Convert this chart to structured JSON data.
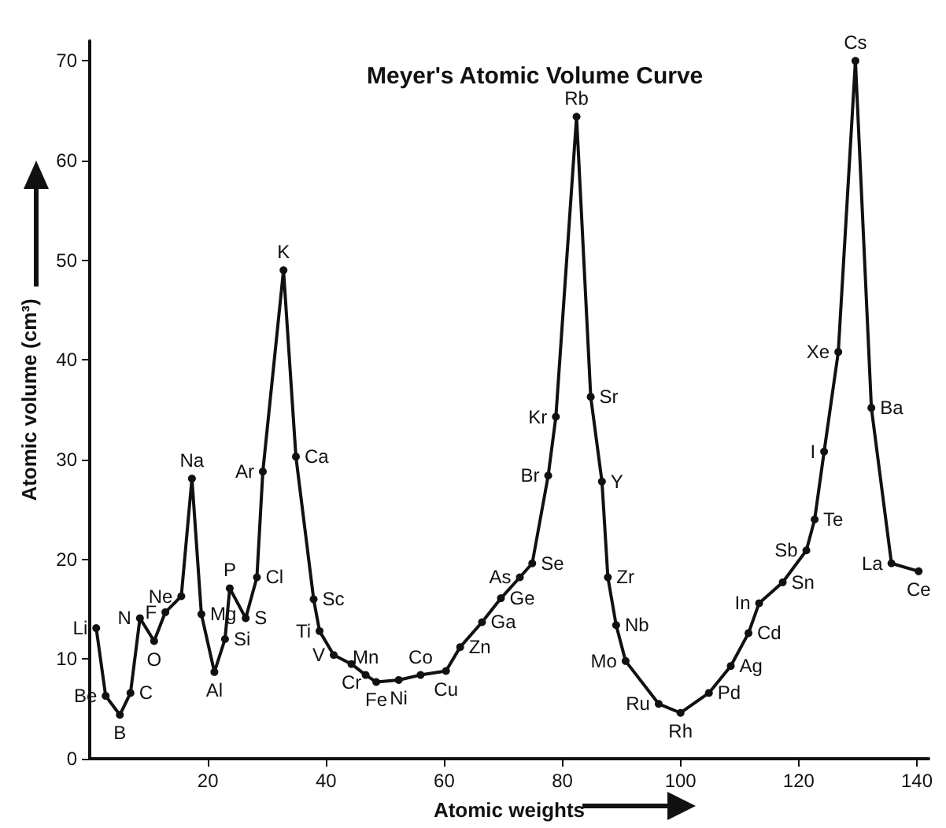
{
  "chart_data": {
    "type": "line",
    "title": "Meyer's Atomic Volume Curve",
    "xlabel": "Atomic weights",
    "ylabel": "Atomic volume (cm³)",
    "x": [
      1.1,
      2.7,
      5.1,
      6.9,
      8.5,
      10.9,
      12.8,
      15.5,
      17.3,
      18.9,
      21.1,
      22.9,
      23.7,
      26.4,
      28.3,
      29.3,
      32.8,
      34.9,
      37.9,
      38.9,
      41.3,
      44.3,
      46.7,
      48.5,
      52.3,
      56,
      60.3,
      62.7,
      66.4,
      69.6,
      72.8,
      74.9,
      77.6,
      78.9,
      82.4,
      84.8,
      86.7,
      87.7,
      89.1,
      90.7,
      96.3,
      100,
      104.8,
      108.5,
      111.5,
      113.3,
      117.3,
      121.3,
      122.7,
      124.3,
      126.7,
      129.6,
      132.3,
      135.7,
      140.3
    ],
    "series": [
      {
        "color": "#111111",
        "values": [
          13.1,
          6.3,
          4.4,
          6.6,
          14.1,
          11.8,
          14.7,
          16.3,
          28.1,
          14.5,
          8.7,
          12,
          17.1,
          14.1,
          18.2,
          28.8,
          49,
          30.3,
          16,
          12.8,
          10.4,
          9.5,
          8.4,
          7.7,
          7.9,
          8.4,
          8.8,
          11.2,
          13.7,
          16.1,
          18.2,
          19.6,
          28.4,
          34.3,
          64.4,
          36.3,
          27.8,
          18.2,
          13.4,
          9.8,
          5.5,
          4.6,
          6.6,
          9.3,
          12.6,
          15.6,
          17.7,
          20.9,
          24,
          30.8,
          40.8,
          70,
          35.2,
          19.6,
          18.8
        ],
        "value_labels": [
          "Li",
          "Be",
          "B",
          "C",
          "N",
          "O",
          "F",
          "Ne",
          "Na",
          "Mg",
          "Al",
          "Si",
          "P",
          "S",
          "Cl",
          "Ar",
          "K",
          "Ca",
          "Sc",
          "Ti",
          "V",
          "Cr",
          "Mn",
          "Fe",
          "Ni",
          "Co",
          "Cu",
          "Zn",
          "Ga",
          "Ge",
          "As",
          "Se",
          "Br",
          "Kr",
          "Rb",
          "Sr",
          "Y",
          "Zr",
          "Nb",
          "Mo",
          "Ru",
          "Rh",
          "Pd",
          "Ag",
          "Cd",
          "In",
          "Sn",
          "Sb",
          "Te",
          "I",
          "Xe",
          "Cs",
          "Ba",
          "La",
          "Ce"
        ]
      }
    ],
    "xlim": [
      0,
      142
    ],
    "xticks": [
      20,
      40,
      60,
      80,
      100,
      120,
      140
    ],
    "ylim": [
      0,
      72
    ],
    "yticks": [
      0,
      10,
      20,
      30,
      40,
      50,
      60,
      70
    ],
    "grid": false,
    "marker": "circle",
    "line_style": "solid"
  }
}
